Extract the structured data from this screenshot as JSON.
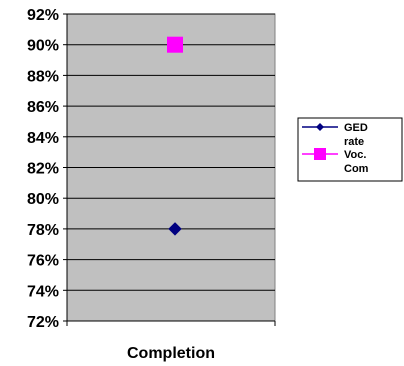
{
  "chart_data": {
    "type": "scatter",
    "categories": [
      "Completion"
    ],
    "series": [
      {
        "name": "GED rate",
        "values": [
          78
        ],
        "color": "#000080",
        "marker": "diamond"
      },
      {
        "name": "Voc. Com",
        "values": [
          90
        ],
        "color": "#ff00ff",
        "marker": "square"
      }
    ],
    "title": "",
    "xlabel": "",
    "ylabel": "",
    "ylim": [
      72,
      92
    ],
    "yticks": [
      "72%",
      "74%",
      "76%",
      "78%",
      "80%",
      "82%",
      "84%",
      "86%",
      "88%",
      "90%",
      "92%"
    ],
    "grid": true,
    "plot_background": "#c0c0c0",
    "legend": {
      "position": "right",
      "lines": [
        [
          "GED",
          "rate"
        ],
        [
          "Voc.",
          "Com"
        ]
      ]
    }
  }
}
